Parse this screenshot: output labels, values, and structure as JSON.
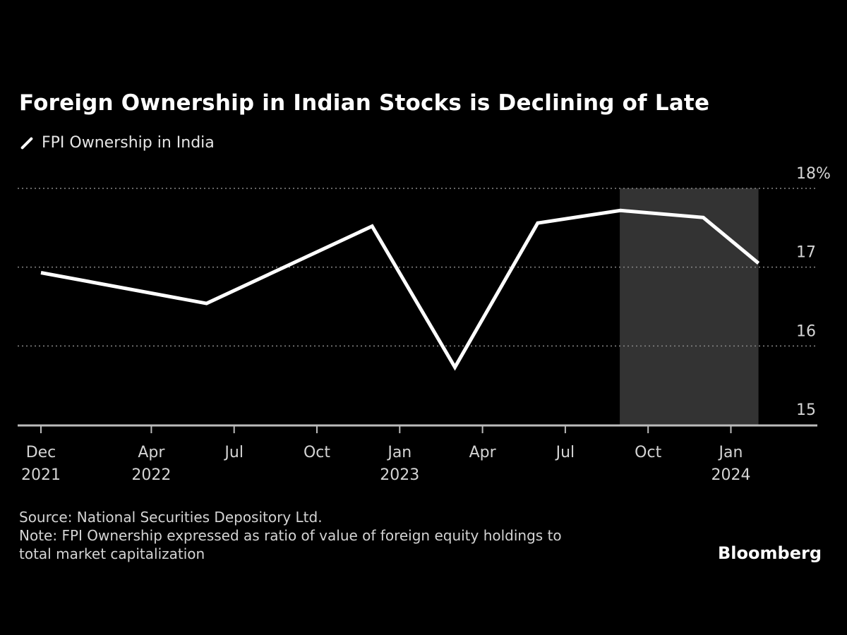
{
  "chart_data": {
    "type": "line",
    "title": "Foreign Ownership in Indian Stocks is Declining of Late",
    "series": [
      {
        "name": "FPI Ownership in India",
        "color": "#ffffff",
        "x": [
          "2021-12",
          "2022-06",
          "2022-12",
          "2023-03",
          "2023-06",
          "2023-09",
          "2023-12",
          "2024-02"
        ],
        "values": [
          16.93,
          16.54,
          17.52,
          15.73,
          17.56,
          17.72,
          17.63,
          17.05
        ]
      }
    ],
    "shaded_range": {
      "from": "2023-09",
      "to": "2024-02",
      "color": "#333333"
    },
    "ylim": [
      15,
      18
    ],
    "y_ticks": [
      {
        "value": 18,
        "label": "18%"
      },
      {
        "value": 17,
        "label": "17"
      },
      {
        "value": 16,
        "label": "16"
      },
      {
        "value": 15,
        "label": "15"
      }
    ],
    "y_axis_side": "right",
    "x_ticks": [
      {
        "date": "2021-12",
        "label": "Dec",
        "year": "2021"
      },
      {
        "date": "2022-04",
        "label": "Apr",
        "year": "2022"
      },
      {
        "date": "2022-07",
        "label": "Jul",
        "year": ""
      },
      {
        "date": "2022-10",
        "label": "Oct",
        "year": ""
      },
      {
        "date": "2023-01",
        "label": "Jan",
        "year": "2023"
      },
      {
        "date": "2023-04",
        "label": "Apr",
        "year": ""
      },
      {
        "date": "2023-07",
        "label": "Jul",
        "year": ""
      },
      {
        "date": "2023-10",
        "label": "Oct",
        "year": ""
      },
      {
        "date": "2024-01",
        "label": "Jan",
        "year": "2024"
      }
    ],
    "grid": "horizontal dotted",
    "legend_position": "top-left",
    "background": "#000000"
  },
  "footer": {
    "source": "Source: National Securities Depository Ltd.",
    "note_line1": "Note: FPI Ownership expressed as ratio of value of foreign equity holdings to",
    "note_line2": "total market capitalization",
    "brand": "Bloomberg"
  }
}
